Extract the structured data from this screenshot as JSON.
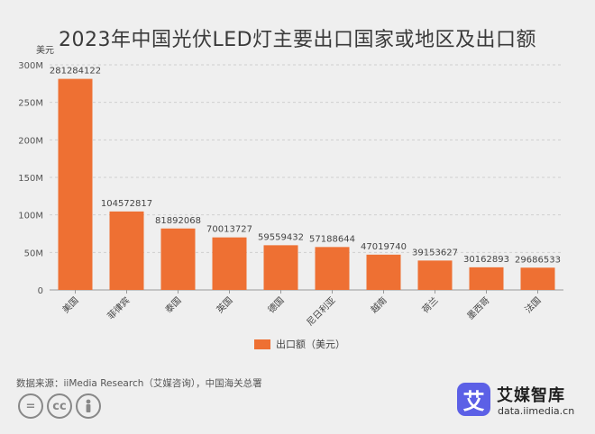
{
  "chart_data": {
    "type": "bar",
    "title": "2023年中国光伏LED灯主要出口国家或地区及出口额",
    "ylabel": "美元",
    "ylim": [
      0,
      300000000
    ],
    "yticks": [
      "0",
      "50M",
      "100M",
      "150M",
      "200M",
      "250M",
      "300M"
    ],
    "grid": true,
    "legend_position": "bottom",
    "color": "#ee7033",
    "categories": [
      "美国",
      "菲律宾",
      "泰国",
      "英国",
      "德国",
      "尼日利亚",
      "越南",
      "荷兰",
      "墨西哥",
      "法国"
    ],
    "series": [
      {
        "name": "出口额（美元）",
        "values": [
          281284122,
          104572817,
          81892068,
          70013727,
          59559432,
          57188644,
          47019740,
          39153627,
          30162893,
          29686533
        ]
      }
    ]
  },
  "footer": {
    "source": "数据来源：iiMedia Research（艾媒咨询），中国海关总署",
    "logo_mark": "艾",
    "logo_title": "艾媒智库",
    "logo_url": "data.iimedia.cn",
    "license_icons": [
      "=",
      "cc",
      "person"
    ]
  }
}
